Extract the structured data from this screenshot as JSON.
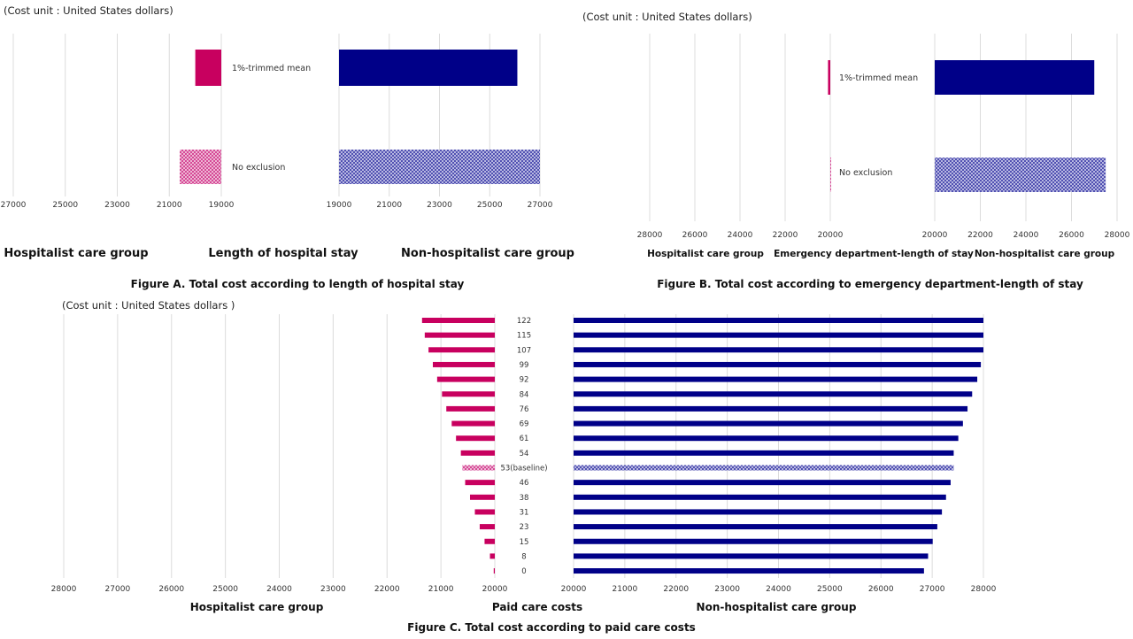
{
  "colors": {
    "hospitalist": "#c8005f",
    "non_hospitalist": "#000088",
    "hospitalist_hatch": "#d0338a",
    "non_hospitalist_hatch": "#3c3ca8"
  },
  "chart_data": [
    {
      "id": "A",
      "type": "bar",
      "cost_unit_label": "(Cost unit : United States dollars)",
      "caption": "Figure A.  Total cost according to length of hospital stay",
      "left_title": "Hospitalist care group",
      "center_title": "Length of hospital stay",
      "right_title": "Non-hospitalist care group",
      "left_ticks": [
        "27000",
        "25000",
        "23000",
        "21000",
        "19000"
      ],
      "right_ticks": [
        "19000",
        "21000",
        "23000",
        "25000",
        "27000"
      ],
      "left_range": [
        27000,
        19000
      ],
      "right_range": [
        19000,
        27000
      ],
      "categories": [
        "1%-trimmed mean",
        "No exclusion"
      ],
      "series": [
        {
          "name": "Hospitalist care group",
          "values": [
            20000,
            20600
          ],
          "hatched": [
            false,
            true
          ]
        },
        {
          "name": "Non-hospitalist care group",
          "values": [
            26100,
            27000
          ],
          "hatched": [
            false,
            true
          ]
        }
      ]
    },
    {
      "id": "B",
      "type": "bar",
      "cost_unit_label": "(Cost unit : United States dollars)",
      "caption": "Figure B.  Total cost according to emergency department-length  of stay",
      "left_title": "Hospitalist care group",
      "center_title": "Emergency department-length of stay",
      "right_title": "Non-hospitalist care group",
      "left_ticks": [
        "28000",
        "26000",
        "24000",
        "22000",
        "20000"
      ],
      "right_ticks": [
        "20000",
        "22000",
        "24000",
        "26000",
        "28000"
      ],
      "left_range": [
        28000,
        20000
      ],
      "right_range": [
        20000,
        28000
      ],
      "categories": [
        "1%-trimmed mean",
        "No exclusion"
      ],
      "series": [
        {
          "name": "Hospitalist care group",
          "values": [
            20100,
            20000
          ],
          "hatched": [
            false,
            true
          ]
        },
        {
          "name": "Non-hospitalist care group",
          "values": [
            27000,
            27500
          ],
          "hatched": [
            false,
            true
          ]
        }
      ]
    },
    {
      "id": "C",
      "type": "bar",
      "cost_unit_label": "(Cost unit : United States dollars )",
      "caption": "Figure C.  Total cost according to paid care costs",
      "left_title": "Hospitalist care group",
      "center_title": "Paid care costs",
      "right_title": "Non-hospitalist care group",
      "left_ticks": [
        "28000",
        "27000",
        "26000",
        "25000",
        "24000",
        "23000",
        "22000",
        "21000",
        "20000"
      ],
      "right_ticks": [
        "20000",
        "21000",
        "22000",
        "23000",
        "24000",
        "25000",
        "26000",
        "27000",
        "28000"
      ],
      "left_range": [
        28000,
        20000
      ],
      "right_range": [
        20000,
        28000
      ],
      "categories": [
        "122",
        "115",
        "107",
        "99",
        "92",
        "84",
        "76",
        "69",
        "61",
        "54",
        "53(baseline)",
        "46",
        "38",
        "31",
        "23",
        "15",
        "8",
        "0"
      ],
      "series": [
        {
          "name": "Hospitalist care group",
          "values": [
            21350,
            21300,
            21230,
            21150,
            21070,
            20980,
            20900,
            20800,
            20720,
            20630,
            20600,
            20550,
            20460,
            20370,
            20280,
            20190,
            20090,
            20020
          ],
          "hatched": [
            false,
            false,
            false,
            false,
            false,
            false,
            false,
            false,
            false,
            false,
            true,
            false,
            false,
            false,
            false,
            false,
            false,
            false
          ]
        },
        {
          "name": "Non-hospitalist care group",
          "values": [
            28000,
            28000,
            28000,
            27950,
            27880,
            27780,
            27690,
            27600,
            27510,
            27420,
            27420,
            27360,
            27270,
            27190,
            27100,
            27010,
            26920,
            26840
          ],
          "hatched": [
            false,
            false,
            false,
            false,
            false,
            false,
            false,
            false,
            false,
            false,
            true,
            false,
            false,
            false,
            false,
            false,
            false,
            false
          ]
        }
      ]
    }
  ]
}
